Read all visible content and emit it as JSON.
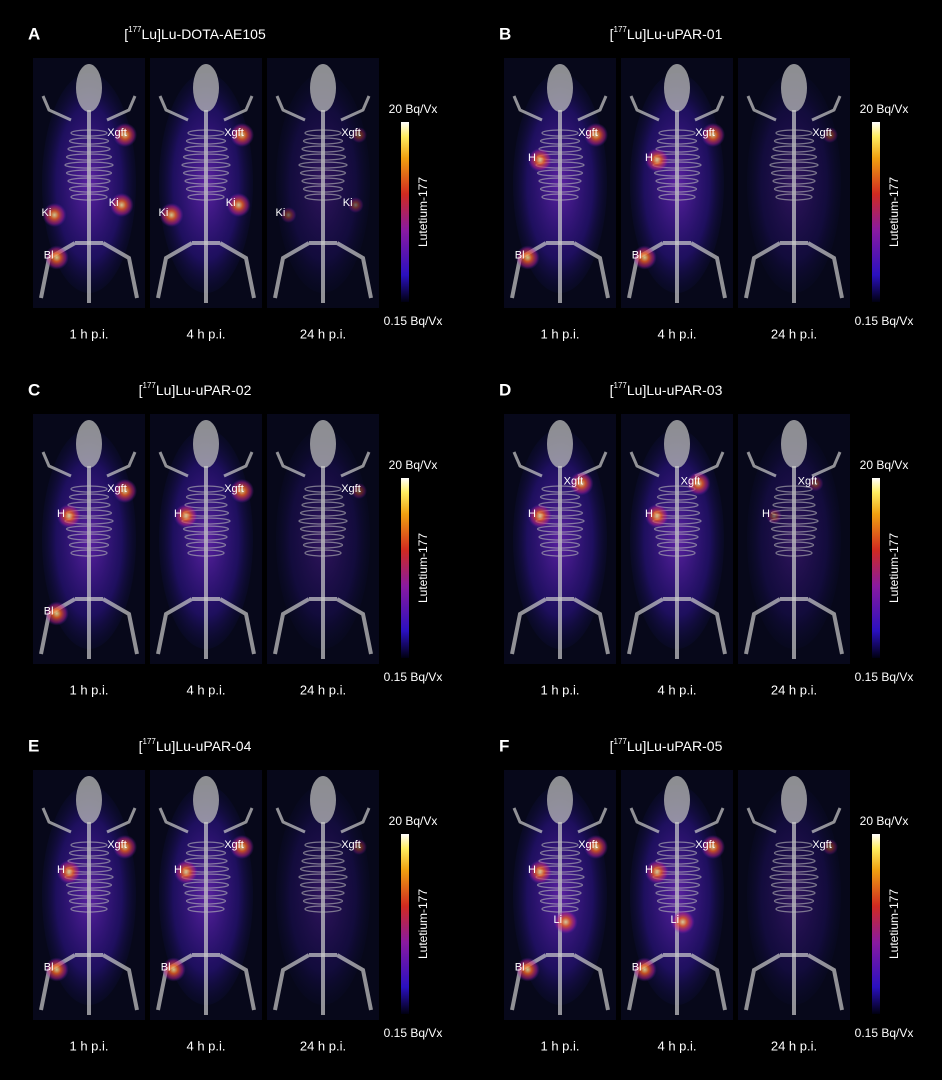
{
  "panels": [
    {
      "letter": "A",
      "title": {
        "pre": "[",
        "sup": "177",
        "post": "Lu]Lu-DOTA-AE105"
      },
      "colorbar": {
        "max": "20 Bq/Vx",
        "min": "0.15 Bq/Vx",
        "name": "Lutetium-177"
      },
      "images": [
        {
          "time": "1 h p.i.",
          "labels": [
            "Xgft",
            "Ki",
            "Ki",
            "Bl"
          ]
        },
        {
          "time": "4 h p.i.",
          "labels": [
            "Xgft",
            "Ki",
            "Ki"
          ]
        },
        {
          "time": "24 h p.i.",
          "labels": [
            "Xgft",
            "Ki",
            "Ki"
          ]
        }
      ]
    },
    {
      "letter": "B",
      "title": {
        "pre": "[",
        "sup": "177",
        "post": "Lu]Lu-uPAR-01"
      },
      "colorbar": {
        "max": "20 Bq/Vx",
        "min": "0.15 Bq/Vx",
        "name": "Lutetium-177"
      },
      "images": [
        {
          "time": "1 h p.i.",
          "labels": [
            "Xgft",
            "H",
            "Bl"
          ]
        },
        {
          "time": "4 h p.i.",
          "labels": [
            "Xgft",
            "H",
            "Bl"
          ]
        },
        {
          "time": "24 h p.i.",
          "labels": [
            "Xgft"
          ]
        }
      ]
    },
    {
      "letter": "C",
      "title": {
        "pre": "[",
        "sup": "177",
        "post": "Lu]Lu-uPAR-02"
      },
      "colorbar": {
        "max": "20 Bq/Vx",
        "min": "0.15 Bq/Vx",
        "name": "Lutetium-177"
      },
      "images": [
        {
          "time": "1 h p.i.",
          "labels": [
            "Xgft",
            "H",
            "Bl"
          ]
        },
        {
          "time": "4 h p.i.",
          "labels": [
            "Xgft",
            "H"
          ]
        },
        {
          "time": "24 h p.i.",
          "labels": [
            "Xgft"
          ]
        }
      ]
    },
    {
      "letter": "D",
      "title": {
        "pre": "[",
        "sup": "177",
        "post": "Lu]Lu-uPAR-03"
      },
      "colorbar": {
        "max": "20 Bq/Vx",
        "min": "0.15 Bq/Vx",
        "name": "Lutetium-177"
      },
      "images": [
        {
          "time": "1 h p.i.",
          "labels": [
            "Xgft",
            "H"
          ]
        },
        {
          "time": "4 h p.i.",
          "labels": [
            "Xgft",
            "H"
          ]
        },
        {
          "time": "24 h p.i.",
          "labels": [
            "Xgft",
            "H"
          ]
        }
      ]
    },
    {
      "letter": "E",
      "title": {
        "pre": "[",
        "sup": "177",
        "post": "Lu]Lu-uPAR-04"
      },
      "colorbar": {
        "max": "20 Bq/Vx",
        "min": "0.15 Bq/Vx",
        "name": "Lutetium-177"
      },
      "images": [
        {
          "time": "1 h p.i.",
          "labels": [
            "Xgft",
            "H",
            "Bl"
          ]
        },
        {
          "time": "4 h p.i.",
          "labels": [
            "Xgft",
            "H",
            "Bl"
          ]
        },
        {
          "time": "24 h p.i.",
          "labels": [
            "Xgft"
          ]
        }
      ]
    },
    {
      "letter": "F",
      "title": {
        "pre": "[",
        "sup": "177",
        "post": "Lu]Lu-uPAR-05"
      },
      "colorbar": {
        "max": "20 Bq/Vx",
        "min": "0.15 Bq/Vx",
        "name": "Lutetium-177"
      },
      "images": [
        {
          "time": "1 h p.i.",
          "labels": [
            "Xgft",
            "H",
            "Li",
            "Bl"
          ]
        },
        {
          "time": "4 h p.i.",
          "labels": [
            "Xgft",
            "H",
            "Li",
            "Bl"
          ]
        },
        {
          "time": "24 h p.i.",
          "labels": [
            "Xgft"
          ]
        }
      ]
    }
  ]
}
